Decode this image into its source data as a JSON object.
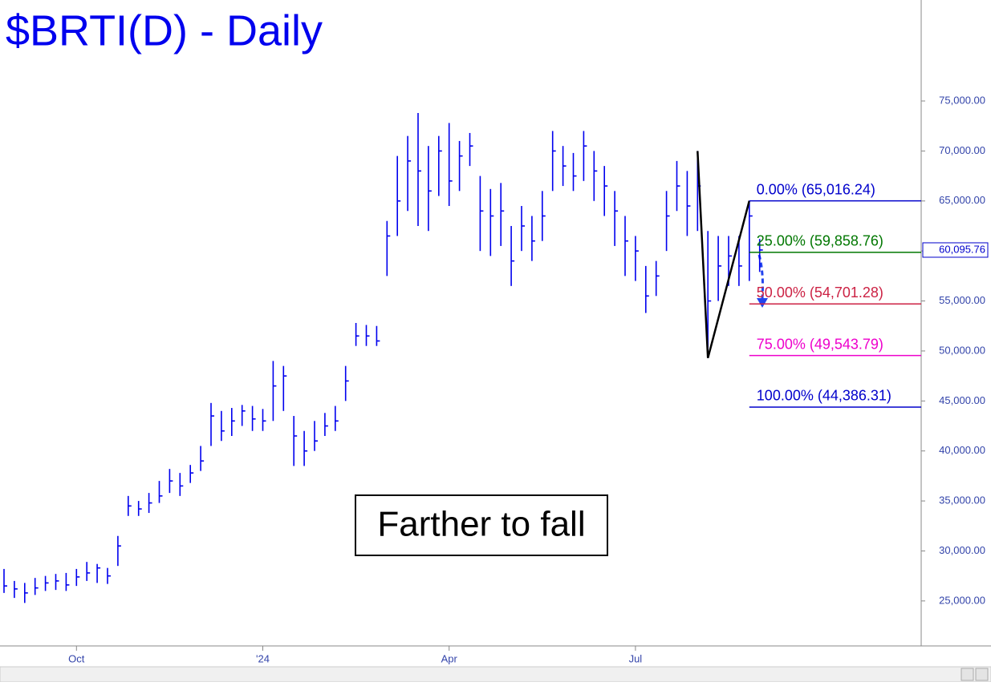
{
  "chart_data": {
    "type": "ohlc",
    "title": "$BRTI(D) - Daily",
    "annotation": "Farther to fall",
    "color": "#0000ee",
    "categories": [
      null,
      null,
      null,
      null,
      null,
      null,
      null,
      "Oct",
      null,
      null,
      null,
      null,
      null,
      null,
      null,
      null,
      null,
      null,
      null,
      null,
      null,
      null,
      null,
      null,
      null,
      "'24",
      null,
      null,
      null,
      null,
      null,
      null,
      null,
      null,
      null,
      null,
      null,
      null,
      null,
      null,
      null,
      null,
      null,
      "Apr",
      null,
      null,
      null,
      null,
      null,
      null,
      null,
      null,
      null,
      null,
      null,
      null,
      null,
      null,
      null,
      null,
      null,
      "Jul",
      null,
      null,
      null,
      null,
      null,
      null,
      null,
      null,
      null,
      null,
      null,
      null
    ],
    "high": [
      28200,
      27000,
      26800,
      27300,
      27500,
      27700,
      27800,
      28200,
      28900,
      28700,
      28300,
      31500,
      35500,
      35000,
      35800,
      37000,
      38200,
      37800,
      38600,
      40500,
      44800,
      44000,
      44300,
      44600,
      44500,
      44200,
      49000,
      48500,
      43500,
      42000,
      43000,
      43800,
      44500,
      48500,
      52800,
      52600,
      52500,
      63000,
      69500,
      71500,
      73800,
      70500,
      71500,
      72800,
      71000,
      71800,
      67500,
      66200,
      66800,
      62500,
      64500,
      63500,
      66000,
      72000,
      70500,
      69800,
      72000,
      70000,
      68500,
      66000,
      63500,
      61500,
      58500,
      59000,
      66000,
      69000,
      68000,
      70000,
      62000,
      61500,
      61500,
      61500,
      65016,
      61200
    ],
    "low": [
      25800,
      25300,
      24800,
      25600,
      26000,
      26100,
      26000,
      26500,
      27000,
      26800,
      26700,
      28500,
      33500,
      33500,
      33800,
      34800,
      35800,
      35500,
      36800,
      38000,
      40500,
      41000,
      41500,
      42500,
      42000,
      42000,
      43000,
      44000,
      38500,
      38500,
      40000,
      41500,
      42000,
      45000,
      50500,
      50500,
      50500,
      57500,
      61500,
      64000,
      62500,
      62000,
      65500,
      64500,
      66000,
      68500,
      60000,
      59500,
      60500,
      56500,
      60000,
      59000,
      61000,
      66000,
      66500,
      66000,
      67000,
      65000,
      63500,
      60500,
      57500,
      57000,
      53800,
      55500,
      60000,
      64000,
      61500,
      62000,
      49300,
      55000,
      56500,
      56500,
      57000,
      57900
    ],
    "close": [
      26500,
      26200,
      25800,
      26300,
      26800,
      27000,
      26600,
      27400,
      27800,
      28300,
      27500,
      30500,
      34500,
      34200,
      34800,
      35500,
      37000,
      36500,
      37800,
      39000,
      43500,
      42000,
      43000,
      44000,
      43200,
      43000,
      46500,
      47500,
      41500,
      40000,
      41000,
      42500,
      43000,
      47000,
      51500,
      51500,
      51000,
      61500,
      65000,
      69000,
      68000,
      66000,
      70000,
      67000,
      69500,
      70500,
      64000,
      63500,
      64000,
      59000,
      62500,
      61000,
      63500,
      70000,
      68500,
      67500,
      70500,
      68000,
      66500,
      64000,
      61000,
      60000,
      55500,
      57500,
      63500,
      66500,
      64500,
      66500,
      55000,
      58500,
      59500,
      58500,
      63500,
      60095.76
    ],
    "ylim": [
      20500,
      85100
    ],
    "yticks": [
      {
        "value": 25000,
        "label": "25,000.00"
      },
      {
        "value": 30000,
        "label": "30,000.00"
      },
      {
        "value": 35000,
        "label": "35,000.00"
      },
      {
        "value": 40000,
        "label": "40,000.00"
      },
      {
        "value": 45000,
        "label": "45,000.00"
      },
      {
        "value": 50000,
        "label": "50,000.00"
      },
      {
        "value": 55000,
        "label": "55,000.00"
      },
      {
        "value": 60000,
        "label": "60,000.00"
      },
      {
        "value": 65000,
        "label": "65,000.00"
      },
      {
        "value": 70000,
        "label": "70,000.00"
      },
      {
        "value": 75000,
        "label": "75,000.00"
      }
    ],
    "last_price": {
      "value": 60095.76,
      "label": "60,095.76"
    },
    "fib_levels": [
      {
        "value": 65016.24,
        "label": "0.00% (65,016.24)",
        "color": "#0000cc"
      },
      {
        "value": 59858.76,
        "label": "25.00% (59,858.76)",
        "color": "#007700"
      },
      {
        "value": 54701.28,
        "label": "50.00% (54,701.28)",
        "color": "#cc2244"
      },
      {
        "value": 49543.79,
        "label": "75.00% (49,543.79)",
        "color": "#ee00cc"
      },
      {
        "value": 44386.31,
        "label": "100.00% (44,386.31)",
        "color": "#0000cc"
      }
    ],
    "pattern": {
      "color": "#000000",
      "points": [
        {
          "x": 67,
          "y": 70000
        },
        {
          "x": 68,
          "y": 49300
        },
        {
          "x": 72,
          "y": 65016.24
        }
      ]
    }
  }
}
